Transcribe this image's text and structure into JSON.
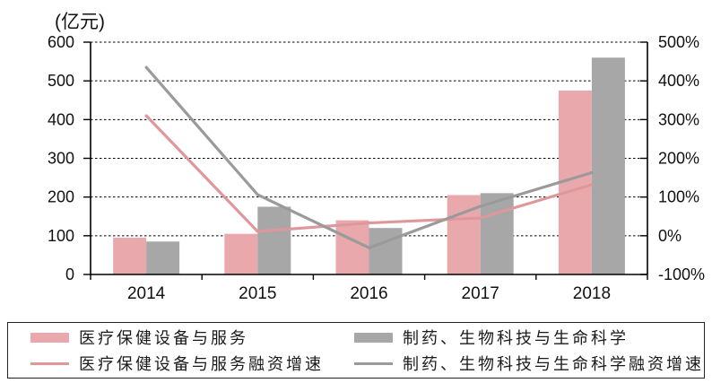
{
  "chart_data": {
    "type": "bar+line",
    "categories": [
      "2014",
      "2015",
      "2016",
      "2017",
      "2018"
    ],
    "series": [
      {
        "name": "医疗保健设备与服务",
        "type": "bar",
        "axis": "left",
        "color": "#E9A9AC",
        "values": [
          95,
          105,
          140,
          205,
          475
        ]
      },
      {
        "name": "制药、生物科技与生命科学",
        "type": "bar",
        "axis": "left",
        "color": "#A7A7A7",
        "values": [
          85,
          175,
          120,
          210,
          560
        ]
      },
      {
        "name": "医疗保健设备与服务融资增速",
        "type": "line",
        "axis": "right",
        "color": "#DE989C",
        "values": [
          310,
          11,
          33,
          46,
          132
        ]
      },
      {
        "name": "制药、生物科技与生命科学融资增速",
        "type": "line",
        "axis": "right",
        "color": "#9A9A9A",
        "values": [
          435,
          106,
          -31,
          76,
          163
        ]
      }
    ],
    "left_axis": {
      "label": "(亿元)",
      "min": 0,
      "max": 600,
      "step": 100,
      "ticks": [
        "0",
        "100",
        "200",
        "300",
        "400",
        "500",
        "600"
      ]
    },
    "right_axis": {
      "min": -100,
      "max": 500,
      "step": 100,
      "ticks": [
        "-100%",
        "0%",
        "100%",
        "200%",
        "300%",
        "400%",
        "500%"
      ]
    },
    "grid": "dashed horizontal",
    "legend_position": "bottom-boxed"
  },
  "legend": {
    "items": [
      {
        "label": "医疗保健设备与服务",
        "swatch": "bar",
        "color": "#E9A9AC"
      },
      {
        "label": "医疗保健设备与服务融资增速",
        "swatch": "line",
        "color": "#DE989C"
      },
      {
        "label": "制药、生物科技与生命科学",
        "swatch": "bar",
        "color": "#A7A7A7"
      },
      {
        "label": "制药、生物科技与生命科学融资增速",
        "swatch": "line",
        "color": "#9A9A9A"
      }
    ]
  },
  "colors": {
    "axis": "#000000",
    "gridline": "#000000",
    "text": "#111111",
    "background": "#ffffff"
  }
}
